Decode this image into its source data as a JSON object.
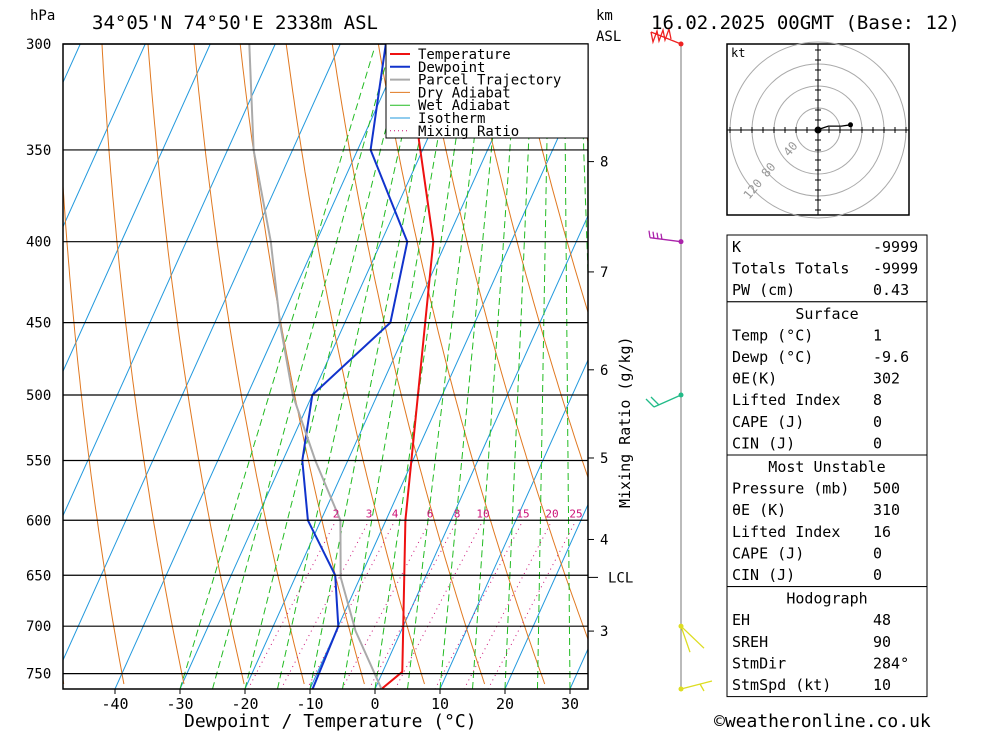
{
  "header": {
    "location": "34°05'N 74°50'E 2338m ASL",
    "datetime": "16.02.2025 00GMT (Base: 12)",
    "left_unit": "hPa",
    "right_unit_km": "km",
    "right_unit_asl": "ASL"
  },
  "footer": {
    "copyright": "©weatheronline.co.uk"
  },
  "chart_data": {
    "type": "line",
    "title": "34°05'N 74°50'E 2338m ASL",
    "xlabel": "Dewpoint / Temperature (°C)",
    "ylabel": "hPa",
    "right_label": "Mixing Ratio (g/kg)",
    "x_ticks": [
      -40,
      -30,
      -20,
      -10,
      0,
      10,
      20,
      30
    ],
    "pressure_levels": [
      300,
      350,
      400,
      450,
      500,
      550,
      600,
      650,
      700,
      750
    ],
    "km_ticks": [
      {
        "label": "8",
        "p": 356
      },
      {
        "label": "7",
        "p": 418
      },
      {
        "label": "6",
        "p": 482
      },
      {
        "label": "5",
        "p": 548
      },
      {
        "label": "4",
        "p": 617
      },
      {
        "label": "3",
        "p": 705
      }
    ],
    "lcl": {
      "label": "LCL",
      "p": 652
    },
    "mixing_ratio_labels": [
      "2",
      "3",
      "4",
      "6",
      "8",
      "10",
      "15",
      "20",
      "25"
    ],
    "legend": [
      "Temperature",
      "Dewpoint",
      "Parcel Trajectory",
      "Dry Adiabat",
      "Wet Adiabat",
      "Isotherm",
      "Mixing Ratio"
    ],
    "colors": {
      "temperature": "#ee1111",
      "dewpoint": "#1133cc",
      "parcel": "#aaaaaa",
      "dry_adiabat": "#e07820",
      "wet_adiabat": "#22bb22",
      "isotherm": "#2299dd",
      "mixing_ratio": "#cc1177"
    },
    "series": [
      {
        "name": "Temperature",
        "points": [
          [
            1,
            767
          ],
          [
            3,
            748
          ],
          [
            -7,
            600
          ],
          [
            -22,
            400
          ],
          [
            -40,
            300
          ]
        ]
      },
      {
        "name": "Dewpoint",
        "points": [
          [
            -9.6,
            767
          ],
          [
            -10,
            700
          ],
          [
            -14,
            650
          ],
          [
            -22,
            600
          ],
          [
            -27,
            550
          ],
          [
            -30,
            500
          ],
          [
            -23,
            450
          ],
          [
            -26,
            400
          ],
          [
            -38,
            350
          ],
          [
            -43,
            300
          ]
        ]
      },
      {
        "name": "Parcel Trajectory",
        "points": [
          [
            1,
            767
          ],
          [
            -7,
            705
          ],
          [
            -13,
            652
          ],
          [
            -17,
            600
          ],
          [
            -25,
            550
          ],
          [
            -33,
            500
          ],
          [
            -40,
            450
          ],
          [
            -47,
            400
          ],
          [
            -56,
            350
          ],
          [
            -64,
            300
          ]
        ]
      }
    ]
  },
  "indices": {
    "rows": [
      {
        "label": "K",
        "value": "-9999"
      },
      {
        "label": "Totals Totals",
        "value": "-9999"
      },
      {
        "label": "PW (cm)",
        "value": "0.43"
      }
    ]
  },
  "surface": {
    "title": "Surface",
    "rows": [
      {
        "label": "Temp (°C)",
        "value": "1"
      },
      {
        "label": "Dewp (°C)",
        "value": "-9.6"
      },
      {
        "label": "θE(K)",
        "value": "302"
      },
      {
        "label": "Lifted Index",
        "value": "8"
      },
      {
        "label": "CAPE (J)",
        "value": "0"
      },
      {
        "label": "CIN (J)",
        "value": "0"
      }
    ]
  },
  "most_unstable": {
    "title": "Most Unstable",
    "rows": [
      {
        "label": "Pressure (mb)",
        "value": "500"
      },
      {
        "label": "θE (K)",
        "value": "310"
      },
      {
        "label": "Lifted Index",
        "value": "16"
      },
      {
        "label": "CAPE (J)",
        "value": "0"
      },
      {
        "label": "CIN (J)",
        "value": "0"
      }
    ]
  },
  "hodograph_table": {
    "title": "Hodograph",
    "rows": [
      {
        "label": "EH",
        "value": "48"
      },
      {
        "label": "SREH",
        "value": "90"
      },
      {
        "label": "StmDir",
        "value": "284°"
      },
      {
        "label": "StmSpd (kt)",
        "value": "10"
      }
    ]
  },
  "hodograph": {
    "unit": "kt",
    "ring_labels": [
      "40",
      "80",
      "120"
    ],
    "points": [
      [
        0,
        0
      ],
      [
        2,
        1
      ],
      [
        8,
        3
      ],
      [
        18,
        3
      ],
      [
        25,
        4
      ]
    ]
  },
  "wind_barbs": [
    {
      "p": 300,
      "color": "#ee2222",
      "kind": "pennants"
    },
    {
      "p": 400,
      "color": "#aa22aa",
      "kind": "barbs"
    },
    {
      "p": 500,
      "color": "#22bb88",
      "kind": "barbs"
    },
    {
      "p": 700,
      "color": "#dddd22",
      "kind": "short"
    },
    {
      "p": 767,
      "color": "#dddd22",
      "kind": "short"
    }
  ]
}
